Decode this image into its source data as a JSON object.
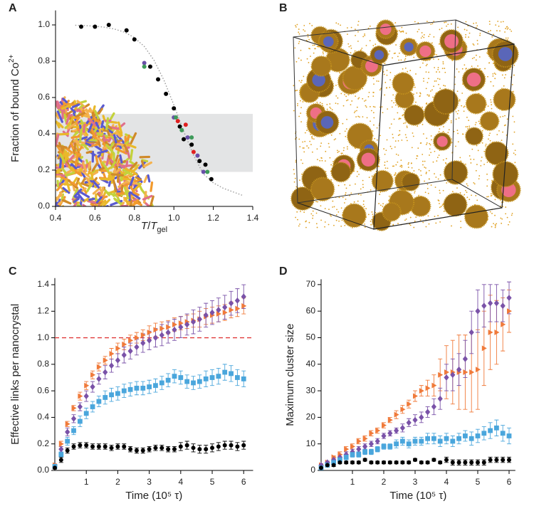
{
  "chart_data": [
    {
      "type": "scatter",
      "panel": "A",
      "ylabel": [
        "Fraction of bound Co",
        "2+"
      ],
      "xlabel": [
        "T",
        "/",
        "T",
        "gel"
      ],
      "xlim": [
        0.4,
        1.4
      ],
      "ylim": [
        0,
        1.08
      ],
      "xticks": [
        0.4,
        0.6,
        0.8,
        {
          "value": 1,
          "label": "1.0"
        },
        1.2,
        1.4
      ],
      "yticks": [
        {
          "value": 0,
          "label": "0.0"
        },
        0.2,
        0.4,
        0.6,
        0.8,
        {
          "value": 1,
          "label": "1.0"
        }
      ],
      "band": [
        0.19,
        0.51
      ],
      "band_color": "#e3e4e5",
      "fit": {
        "color": "#9a9a9a",
        "style": "dotted",
        "x": [
          0.5,
          0.55,
          0.6,
          0.65,
          0.7,
          0.75,
          0.8,
          0.85,
          0.9,
          0.95,
          1.0,
          1.05,
          1.1,
          1.15,
          1.2,
          1.25,
          1.3,
          1.35
        ],
        "values": [
          0.998,
          0.996,
          0.993,
          0.987,
          0.977,
          0.96,
          0.93,
          0.881,
          0.804,
          0.694,
          0.559,
          0.413,
          0.281,
          0.178,
          0.13,
          0.1,
          0.08,
          0.06
        ]
      },
      "series": [
        {
          "color": "#000000",
          "marker": "circle",
          "x": [
            0.53,
            0.6,
            0.67,
            0.76,
            0.8,
            0.88,
            0.92,
            0.96,
            1.0,
            1.03,
            1.05,
            1.09,
            1.13,
            1.16,
            1.19
          ],
          "values": [
            0.99,
            0.99,
            1.0,
            0.97,
            0.92,
            0.77,
            0.7,
            0.62,
            0.54,
            0.44,
            0.37,
            0.34,
            0.25,
            0.23,
            0.15
          ]
        },
        {
          "color": "#6a4fa8",
          "marker": "circle",
          "x": [
            0.85,
            1.0,
            1.07,
            1.12,
            1.15
          ],
          "values": [
            0.79,
            0.49,
            0.38,
            0.28,
            0.19
          ]
        },
        {
          "color": "#e02020",
          "marker": "circle",
          "x": [
            1.02,
            1.06,
            1.1
          ],
          "values": [
            0.47,
            0.45,
            0.3
          ]
        },
        {
          "color": "#3e9a5a",
          "marker": "circle",
          "x": [
            0.85,
            1.01,
            1.04,
            1.09,
            1.17
          ],
          "values": [
            0.77,
            0.49,
            0.42,
            0.38,
            0.19
          ]
        }
      ]
    },
    {
      "type": "image",
      "panel": "B"
    },
    {
      "type": "errorbar",
      "panel": "C",
      "ylabel": "Effective links per nanocrystal",
      "xlabel": "Time (10⁵ τ)",
      "xlim": [
        0,
        6.3
      ],
      "ylim": [
        0,
        1.45
      ],
      "xticks": [
        1,
        2,
        3,
        4,
        5,
        6
      ],
      "yticks": [
        {
          "value": 0,
          "label": "0.0"
        },
        0.2,
        0.4,
        0.6,
        0.8,
        {
          "value": 1,
          "label": "1.0"
        },
        1.2,
        1.4
      ],
      "hline": 1,
      "hline_color": "#e03a3a",
      "x": [
        0.0,
        0.2,
        0.4,
        0.6,
        0.8,
        1.0,
        1.2,
        1.4,
        1.6,
        1.8,
        2.0,
        2.2,
        2.4,
        2.6,
        2.8,
        3.0,
        3.2,
        3.4,
        3.6,
        3.8,
        4.0,
        4.2,
        4.4,
        4.6,
        4.8,
        5.0,
        5.2,
        5.4,
        5.6,
        5.8,
        6.0
      ],
      "series": [
        {
          "color": "#f07a3a",
          "marker": "triangle-right",
          "values": [
            0.04,
            0.2,
            0.35,
            0.47,
            0.56,
            0.64,
            0.72,
            0.78,
            0.83,
            0.88,
            0.92,
            0.95,
            0.98,
            1.0,
            1.02,
            1.04,
            1.06,
            1.07,
            1.08,
            1.1,
            1.11,
            1.12,
            1.13,
            1.14,
            1.16,
            1.17,
            1.18,
            1.19,
            1.21,
            1.22,
            1.24
          ],
          "errors": [
            0.01,
            0.02,
            0.02,
            0.02,
            0.03,
            0.03,
            0.03,
            0.03,
            0.03,
            0.04,
            0.04,
            0.04,
            0.04,
            0.04,
            0.04,
            0.05,
            0.05,
            0.05,
            0.05,
            0.05,
            0.05,
            0.05,
            0.05,
            0.06,
            0.06,
            0.06,
            0.06,
            0.06,
            0.06,
            0.06,
            0.06
          ]
        },
        {
          "color": "#7a52a8",
          "marker": "diamond",
          "values": [
            0.03,
            0.16,
            0.29,
            0.39,
            0.48,
            0.56,
            0.63,
            0.69,
            0.74,
            0.79,
            0.83,
            0.87,
            0.9,
            0.93,
            0.96,
            0.98,
            1.0,
            1.02,
            1.04,
            1.06,
            1.08,
            1.1,
            1.12,
            1.14,
            1.17,
            1.19,
            1.21,
            1.23,
            1.26,
            1.28,
            1.31
          ],
          "errors": [
            0.01,
            0.02,
            0.03,
            0.03,
            0.03,
            0.04,
            0.04,
            0.04,
            0.05,
            0.05,
            0.05,
            0.06,
            0.06,
            0.06,
            0.07,
            0.07,
            0.07,
            0.08,
            0.08,
            0.08,
            0.08,
            0.08,
            0.09,
            0.09,
            0.09,
            0.09,
            0.09,
            0.09,
            0.09,
            0.09,
            0.09
          ]
        },
        {
          "color": "#4aa6dc",
          "marker": "square",
          "values": [
            0.03,
            0.12,
            0.22,
            0.3,
            0.37,
            0.43,
            0.48,
            0.52,
            0.55,
            0.57,
            0.58,
            0.6,
            0.61,
            0.62,
            0.62,
            0.63,
            0.64,
            0.66,
            0.68,
            0.71,
            0.7,
            0.67,
            0.66,
            0.67,
            0.69,
            0.7,
            0.71,
            0.74,
            0.73,
            0.7,
            0.69
          ],
          "errors": [
            0.01,
            0.02,
            0.03,
            0.03,
            0.04,
            0.04,
            0.04,
            0.04,
            0.05,
            0.05,
            0.05,
            0.05,
            0.05,
            0.05,
            0.05,
            0.05,
            0.05,
            0.05,
            0.05,
            0.05,
            0.05,
            0.05,
            0.05,
            0.05,
            0.06,
            0.06,
            0.06,
            0.06,
            0.06,
            0.06,
            0.06
          ]
        },
        {
          "color": "#000000",
          "marker": "circle",
          "values": [
            0.02,
            0.08,
            0.15,
            0.18,
            0.19,
            0.19,
            0.18,
            0.18,
            0.18,
            0.17,
            0.18,
            0.18,
            0.16,
            0.15,
            0.15,
            0.16,
            0.17,
            0.17,
            0.16,
            0.16,
            0.18,
            0.19,
            0.17,
            0.16,
            0.16,
            0.17,
            0.18,
            0.19,
            0.19,
            0.18,
            0.19
          ],
          "errors": [
            0.01,
            0.02,
            0.02,
            0.02,
            0.02,
            0.02,
            0.02,
            0.02,
            0.02,
            0.02,
            0.02,
            0.02,
            0.02,
            0.02,
            0.02,
            0.02,
            0.02,
            0.02,
            0.02,
            0.02,
            0.03,
            0.03,
            0.03,
            0.03,
            0.03,
            0.03,
            0.03,
            0.03,
            0.03,
            0.03,
            0.03
          ]
        }
      ]
    },
    {
      "type": "errorbar",
      "panel": "D",
      "ylabel": "Maximum cluster size",
      "xlabel": "Time (10⁵ τ)",
      "xlim": [
        0,
        6.2
      ],
      "ylim": [
        0,
        72
      ],
      "xticks": [
        1,
        2,
        3,
        4,
        5,
        6
      ],
      "yticks": [
        0,
        10,
        20,
        30,
        40,
        50,
        60,
        70
      ],
      "x": [
        0.0,
        0.2,
        0.4,
        0.6,
        0.8,
        1.0,
        1.2,
        1.4,
        1.6,
        1.8,
        2.0,
        2.2,
        2.4,
        2.6,
        2.8,
        3.0,
        3.2,
        3.4,
        3.6,
        3.8,
        4.0,
        4.2,
        4.4,
        4.6,
        4.8,
        5.0,
        5.2,
        5.4,
        5.6,
        5.8,
        6.0
      ],
      "series": [
        {
          "color": "#f07a3a",
          "marker": "triangle-right",
          "values": [
            2,
            3,
            5,
            6,
            8,
            9,
            11,
            12,
            14,
            15,
            17,
            19,
            21,
            23,
            25,
            28,
            30,
            31,
            32,
            36,
            37,
            37,
            37,
            37,
            37,
            38,
            46,
            52,
            52,
            55,
            60
          ],
          "errors": [
            0.5,
            0.5,
            0.5,
            1,
            1,
            1,
            1,
            1,
            1,
            1,
            1,
            1,
            1.5,
            1.5,
            1.5,
            2,
            2,
            3,
            4,
            6,
            10,
            12,
            14,
            14,
            15,
            15,
            14,
            14,
            12,
            10,
            8
          ]
        },
        {
          "color": "#7a52a8",
          "marker": "diamond",
          "values": [
            2,
            3,
            4,
            5,
            6,
            7,
            8,
            9,
            10,
            11,
            13,
            14,
            15,
            16,
            18,
            19,
            20,
            22,
            24,
            27,
            35,
            36,
            38,
            42,
            52,
            60,
            62,
            63,
            63,
            62,
            65
          ],
          "errors": [
            0.5,
            0.5,
            0.5,
            1,
            1,
            1,
            1,
            1,
            1,
            1,
            1,
            1,
            1,
            1.5,
            1.5,
            2,
            2,
            2,
            3,
            4,
            5,
            6,
            6,
            7,
            8,
            8,
            8,
            7,
            7,
            6,
            6
          ]
        },
        {
          "color": "#4aa6dc",
          "marker": "square",
          "values": [
            1,
            2,
            3,
            4,
            5,
            6,
            6,
            7,
            7,
            8,
            9,
            9,
            10,
            11,
            10,
            11,
            11,
            12,
            12,
            11,
            12,
            11,
            12,
            13,
            12,
            13,
            14,
            15,
            16,
            14,
            13
          ],
          "errors": [
            0.5,
            0.5,
            0.5,
            0.5,
            1,
            1,
            1,
            1,
            1,
            1,
            1,
            1,
            1.5,
            1.5,
            1.5,
            1.5,
            1.5,
            2,
            2,
            2,
            2,
            2,
            2,
            2,
            2.5,
            2.5,
            2.5,
            3,
            3,
            3,
            3
          ]
        },
        {
          "color": "#000000",
          "marker": "circle",
          "values": [
            1,
            2,
            2,
            3,
            3,
            3,
            3,
            4,
            3,
            3,
            3,
            3,
            3,
            3,
            3,
            4,
            3,
            3,
            4,
            3,
            4,
            3,
            3,
            3,
            3,
            3,
            3,
            4,
            4,
            4,
            4
          ],
          "errors": [
            0.5,
            0.5,
            0.5,
            0.5,
            0.5,
            0.5,
            0.5,
            0.5,
            0.5,
            0.5,
            0.5,
            0.5,
            0.5,
            0.5,
            0.5,
            0.5,
            0.5,
            0.5,
            0.5,
            0.5,
            1,
            1,
            1,
            1,
            1,
            1,
            1,
            1,
            1,
            1,
            1
          ]
        }
      ]
    }
  ]
}
